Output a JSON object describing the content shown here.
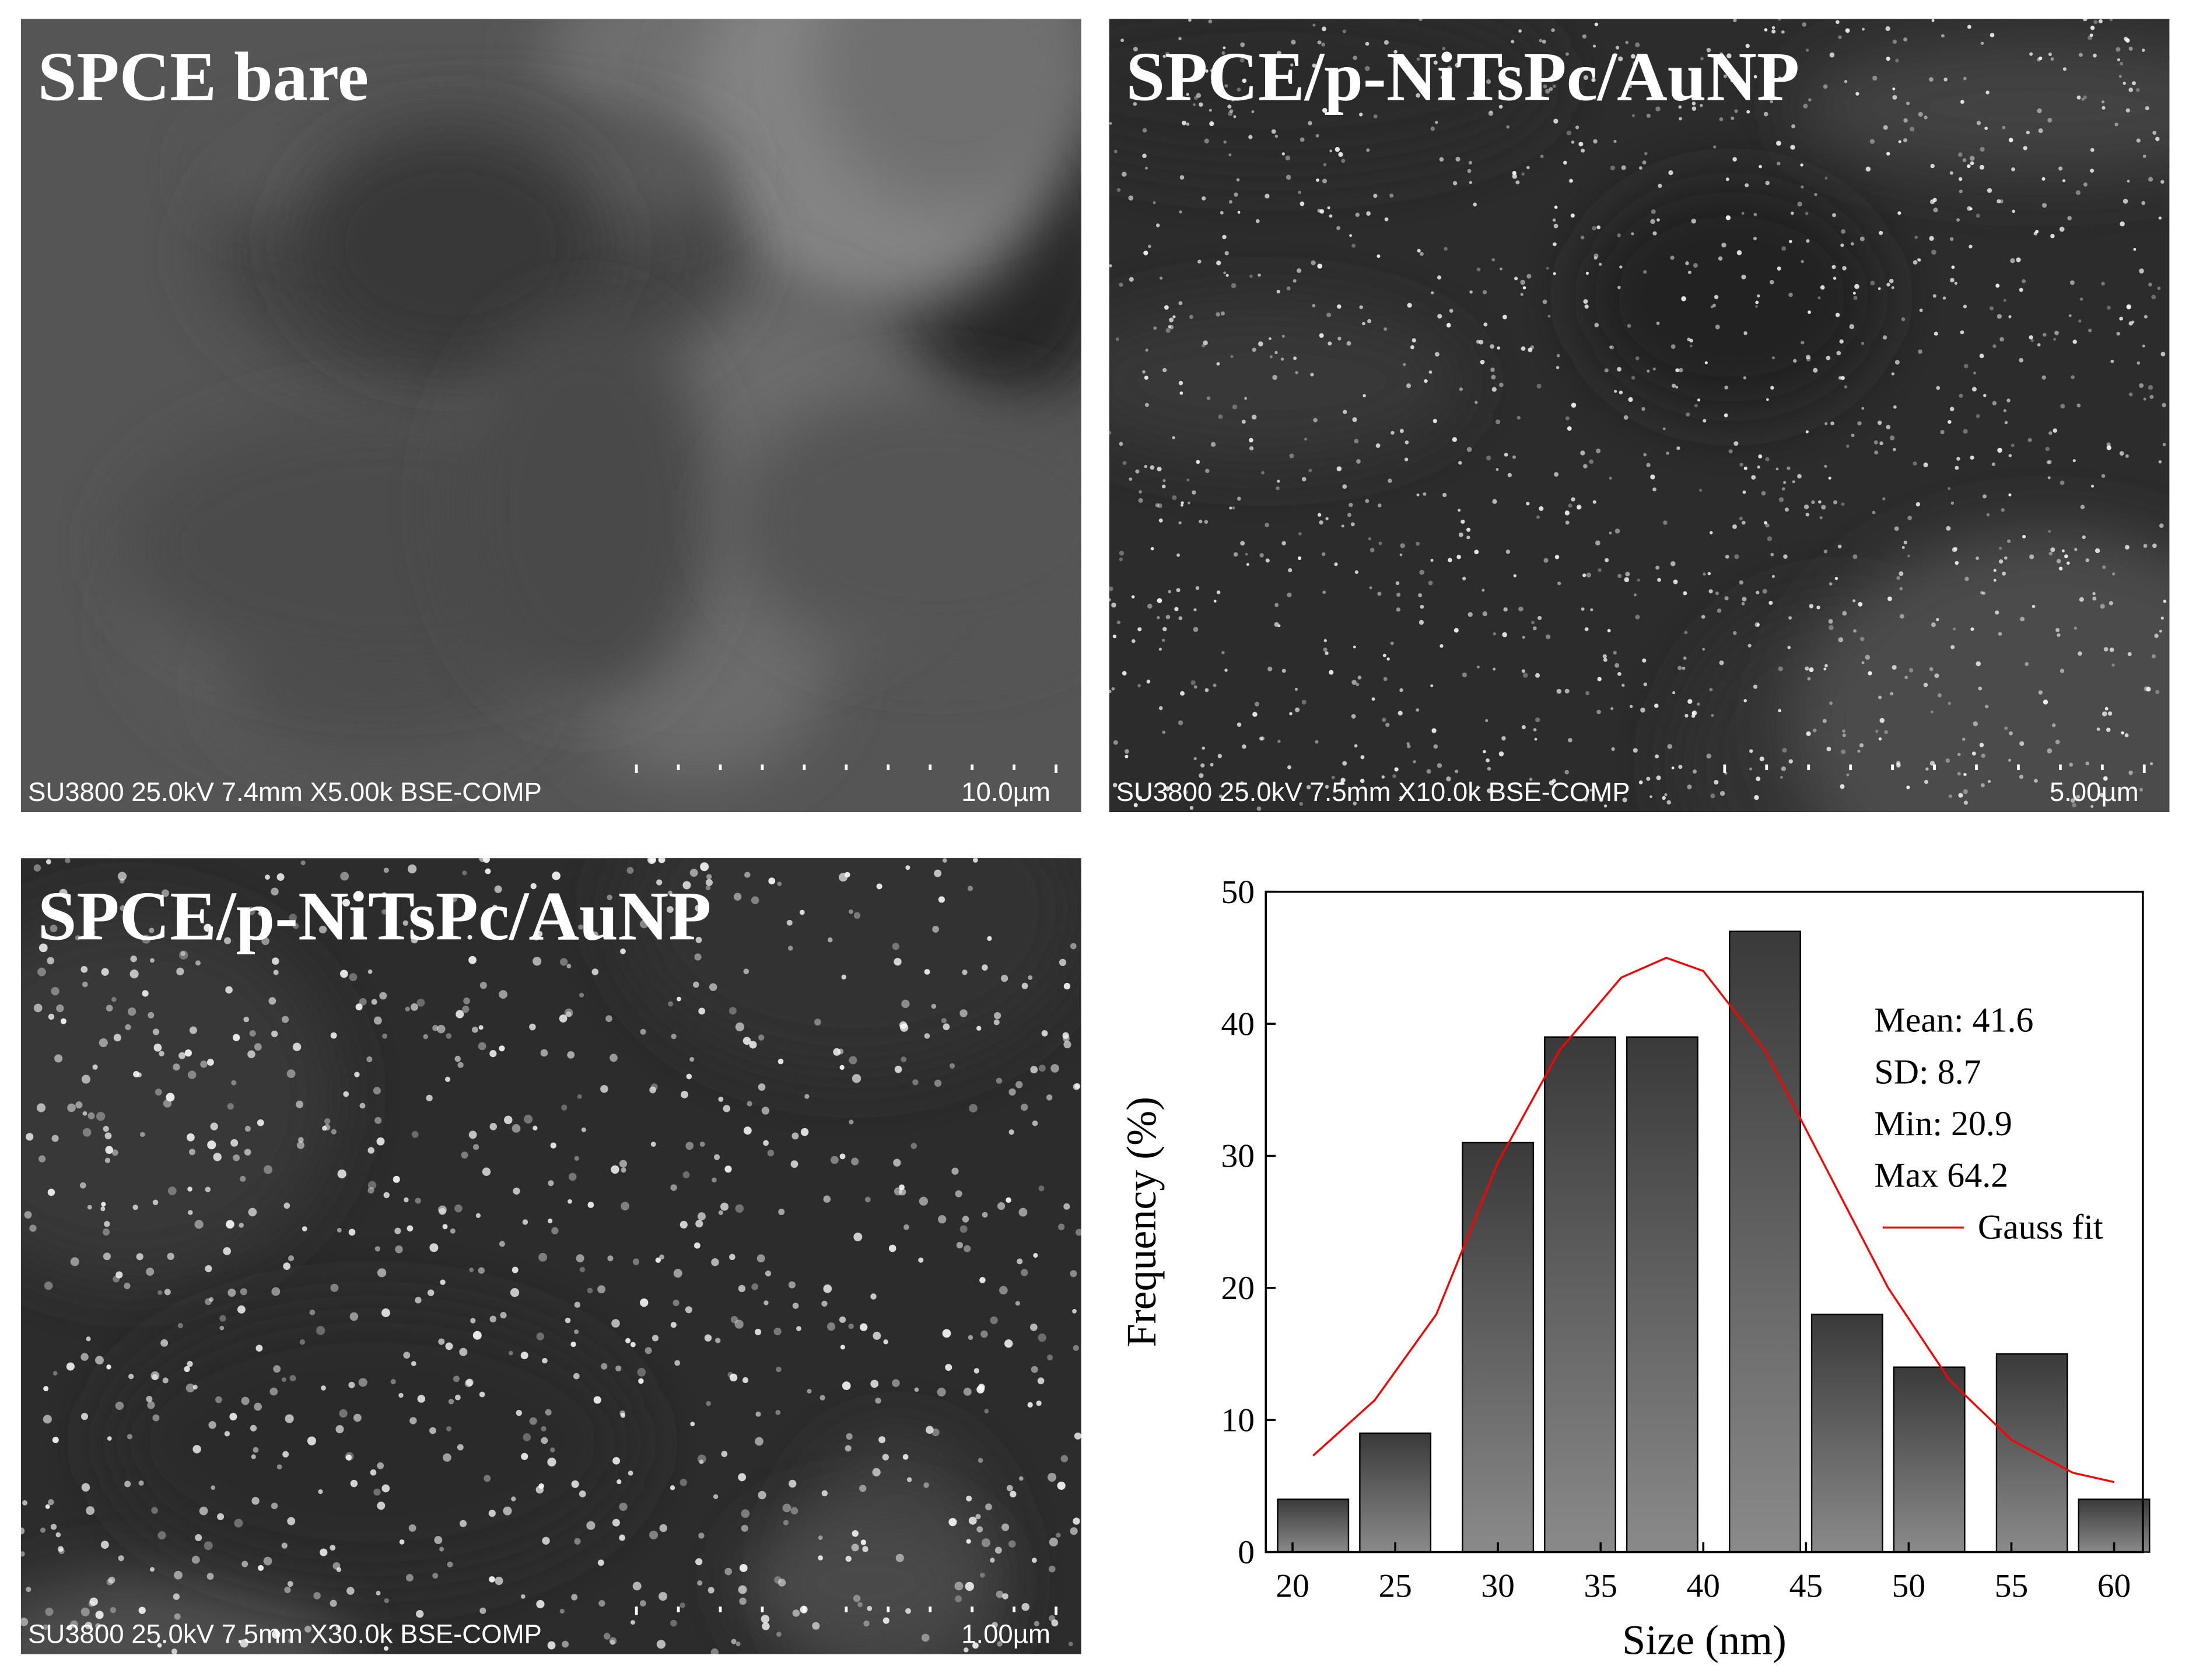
{
  "images": [
    {
      "title": "SPCE bare",
      "info": "SU3800 25.0kV 7.4mm X5.00k BSE-COMP",
      "scale": "10.0µm"
    },
    {
      "title": "SPCE/p-NiTsPc/AuNP",
      "info": "SU3800 25.0kV 7.5mm X10.0k BSE-COMP",
      "scale": "5.00µm"
    },
    {
      "title": "SPCE/p-NiTsPc/AuNP",
      "info": "SU3800 25.0kV 7.5mm X30.0k BSE-COMP",
      "scale": "1.00µm"
    }
  ],
  "chart_data": {
    "type": "bar",
    "x_label": "Size (nm)",
    "y_label": "Frequency (%)",
    "x": [
      21,
      25,
      30,
      34,
      38,
      43,
      47,
      51,
      56,
      60
    ],
    "values": [
      4,
      9,
      31,
      39,
      39,
      47,
      18,
      14,
      15,
      4
    ],
    "color": "#3a3a3a",
    "fit": {
      "name": "Gauss fit",
      "color": "#ff0000",
      "x": [
        21,
        24,
        27,
        30,
        33,
        36,
        38.2,
        40,
        43,
        46,
        49,
        52,
        55,
        58,
        60
      ],
      "values": [
        7.3,
        11.5,
        18,
        29.5,
        38,
        43.5,
        45,
        44,
        38,
        29,
        20,
        13,
        8.5,
        6,
        5.3
      ]
    },
    "annotations": [
      "Mean: 41.6",
      "SD: 8.7",
      "Min: 20.9",
      "Max 64.2"
    ],
    "xlim": [
      18.7,
      61.4
    ],
    "ylim": [
      0,
      50
    ],
    "xticks": [
      20,
      25,
      30,
      35,
      40,
      45,
      50,
      55,
      60
    ],
    "yticks": [
      0,
      10,
      20,
      30,
      40,
      50
    ]
  }
}
